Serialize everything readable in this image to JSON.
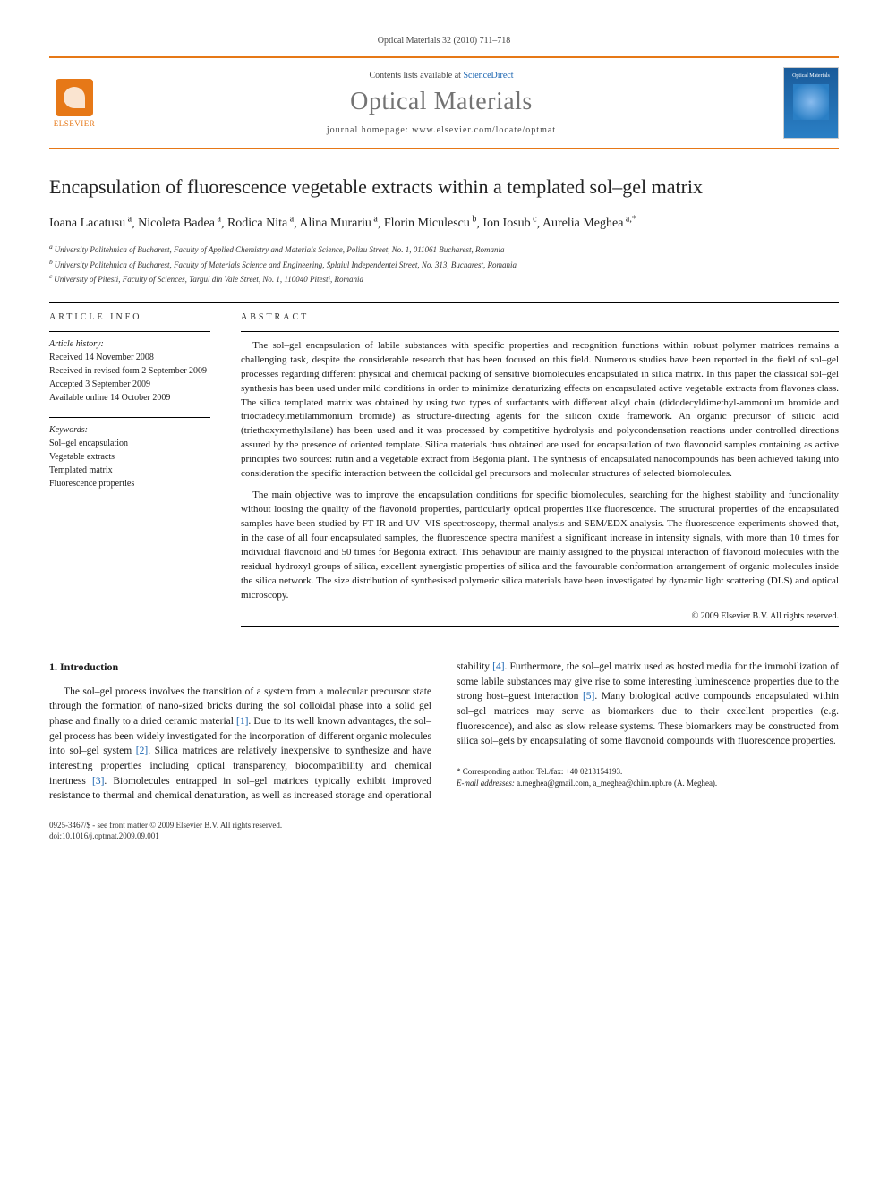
{
  "meta": {
    "citation": "Optical Materials 32 (2010) 711–718",
    "contents_prefix": "Contents lists available at ",
    "contents_link": "ScienceDirect",
    "journal_name": "Optical Materials",
    "homepage_label": "journal homepage: www.elsevier.com/locate/optmat",
    "elsevier_brand": "ELSEVIER",
    "cover_label": "Optical Materials"
  },
  "article": {
    "title": "Encapsulation of fluorescence vegetable extracts within a templated sol–gel matrix",
    "authors_html_parts": [
      {
        "name": "Ioana Lacatusu",
        "aff": "a"
      },
      {
        "name": "Nicoleta Badea",
        "aff": "a"
      },
      {
        "name": "Rodica Nita",
        "aff": "a"
      },
      {
        "name": "Alina Murariu",
        "aff": "a"
      },
      {
        "name": "Florin Miculescu",
        "aff": "b"
      },
      {
        "name": "Ion Iosub",
        "aff": "c"
      },
      {
        "name": "Aurelia Meghea",
        "aff": "a,*"
      }
    ],
    "affiliations": [
      {
        "key": "a",
        "text": "University Politehnica of Bucharest, Faculty of Applied Chemistry and Materials Science, Polizu Street, No. 1, 011061 Bucharest, Romania"
      },
      {
        "key": "b",
        "text": "University Politehnica of Bucharest, Faculty of Materials Science and Engineering, Splaiul Independentei Street, No. 313, Bucharest, Romania"
      },
      {
        "key": "c",
        "text": "University of Pitesti, Faculty of Sciences, Targul din Vale Street, No. 1, 110040 Pitesti, Romania"
      }
    ]
  },
  "info": {
    "label": "ARTICLE INFO",
    "history_head": "Article history:",
    "history": [
      "Received 14 November 2008",
      "Received in revised form 2 September 2009",
      "Accepted 3 September 2009",
      "Available online 14 October 2009"
    ],
    "keywords_head": "Keywords:",
    "keywords": [
      "Sol–gel encapsulation",
      "Vegetable extracts",
      "Templated matrix",
      "Fluorescence properties"
    ]
  },
  "abstract": {
    "label": "ABSTRACT",
    "p1": "The sol–gel encapsulation of labile substances with specific properties and recognition functions within robust polymer matrices remains a challenging task, despite the considerable research that has been focused on this field. Numerous studies have been reported in the field of sol–gel processes regarding different physical and chemical packing of sensitive biomolecules encapsulated in silica matrix. In this paper the classical sol–gel synthesis has been used under mild conditions in order to minimize denaturizing effects on encapsulated active vegetable extracts from flavones class. The silica templated matrix was obtained by using two types of surfactants with different alkyl chain (didodecyldimethyl-ammonium bromide and trioctadecylmetilammonium bromide) as structure-directing agents for the silicon oxide framework. An organic precursor of silicic acid (triethoxymethylsilane) has been used and it was processed by competitive hydrolysis and polycondensation reactions under controlled directions assured by the presence of oriented template. Silica materials thus obtained are used for encapsulation of two flavonoid samples containing as active principles two sources: rutin and a vegetable extract from Begonia plant. The synthesis of encapsulated nanocompounds has been achieved taking into consideration the specific interaction between the colloidal gel precursors and molecular structures of selected biomolecules.",
    "p2": "The main objective was to improve the encapsulation conditions for specific biomolecules, searching for the highest stability and functionality without loosing the quality of the flavonoid properties, particularly optical properties like fluorescence. The structural properties of the encapsulated samples have been studied by FT-IR and UV–VIS spectroscopy, thermal analysis and SEM/EDX analysis. The fluorescence experiments showed that, in the case of all four encapsulated samples, the fluorescence spectra manifest a significant increase in intensity signals, with more than 10 times for individual flavonoid and 50 times for Begonia extract. This behaviour are mainly assigned to the physical interaction of flavonoid molecules with the residual hydroxyl groups of silica, excellent synergistic properties of silica and the favourable conformation arrangement of organic molecules inside the silica network. The size distribution of synthesised polymeric silica materials have been investigated by dynamic light scattering (DLS) and optical microscopy.",
    "copyright": "© 2009 Elsevier B.V. All rights reserved."
  },
  "body": {
    "section1_title": "1. Introduction",
    "para1_pre": "The sol–gel process involves the transition of a system from a molecular precursor state through the formation of nano-sized bricks during the sol colloidal phase into a solid gel phase and finally to a dried ceramic material ",
    "ref1": "[1]",
    "para1_mid1": ". Due to its well known advantages, the sol–gel process has been widely investigated for the incorporation of different organic molecules into sol–gel system ",
    "ref2": "[2]",
    "para1_mid2": ". Silica matrices are relatively inexpensive to synthesize and have interesting properties including optical transparency, biocompatibility and chemical inertness ",
    "ref3": "[3]",
    "para1_mid3": ". Biomolecules entrapped in sol–gel matrices typically exhibit improved resistance to thermal and chemical denaturation, as well as increased storage and operational stability ",
    "ref4": "[4]",
    "para1_mid4": ". Furthermore, the sol–gel matrix used as hosted media for the immobilization of some labile substances may give rise to some interesting luminescence properties due to the strong host–guest interaction ",
    "ref5": "[5]",
    "para1_end": ". Many biological active compounds encapsulated within sol–gel matrices may serve as biomarkers due to their excellent properties (e.g. fluorescence), and also as slow release systems. These biomarkers may be constructed from silica sol–gels by encapsulating of some flavonoid compounds with fluorescence properties."
  },
  "footnote": {
    "corr": "* Corresponding author. Tel./fax: +40 0213154193.",
    "email_label": "E-mail addresses:",
    "emails": "a.meghea@gmail.com, a_meghea@chim.upb.ro",
    "email_attr": "(A. Meghea)."
  },
  "footer": {
    "line1": "0925-3467/$ - see front matter © 2009 Elsevier B.V. All rights reserved.",
    "line2": "doi:10.1016/j.optmat.2009.09.001"
  },
  "colors": {
    "accent": "#e67817",
    "link": "#1863b0",
    "journal_gray": "#737373"
  }
}
